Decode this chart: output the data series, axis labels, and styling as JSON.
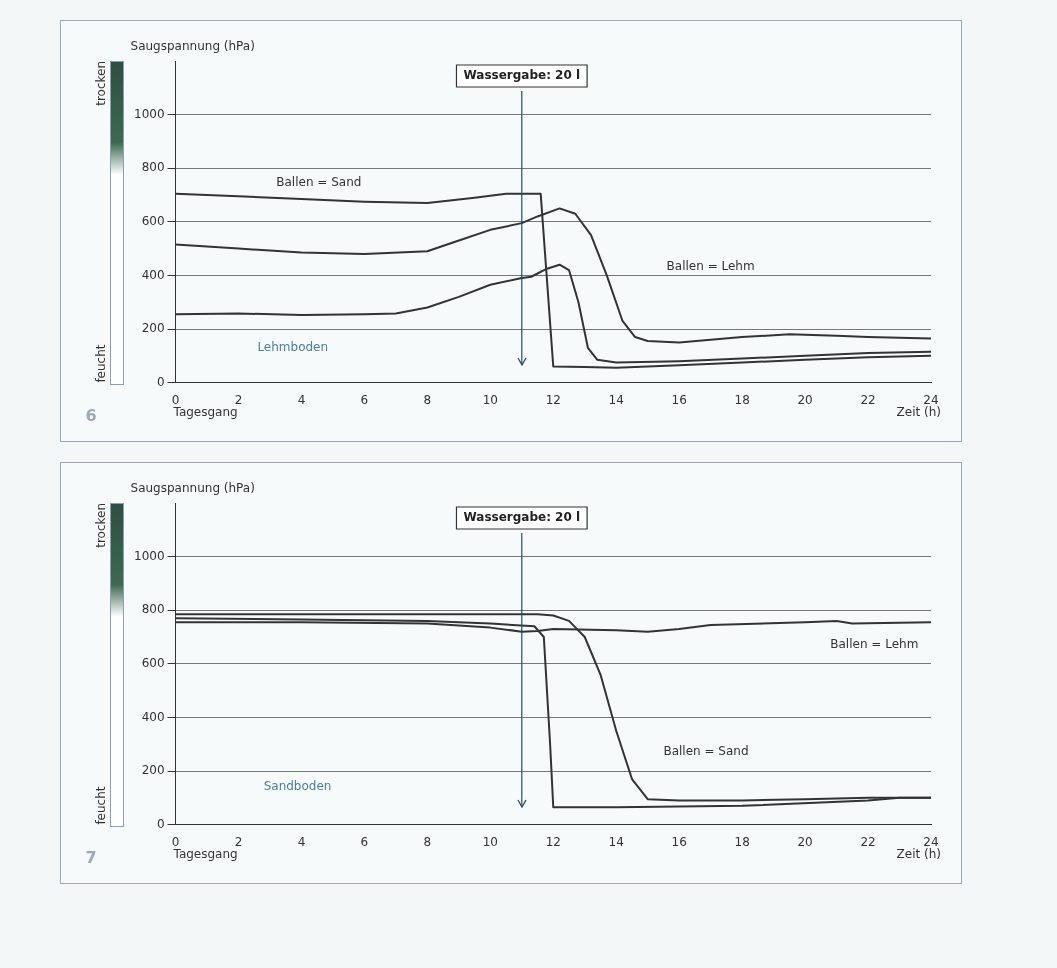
{
  "chart_data": [
    {
      "type": "line",
      "ylabel": "Saugspannung (hPa)",
      "xlabel": "Zeit (h)",
      "xlim": [
        0,
        24
      ],
      "xticks": [
        0,
        2,
        4,
        6,
        8,
        10,
        12,
        14,
        16,
        18,
        20,
        22,
        24
      ],
      "ylim": [
        0,
        1200
      ],
      "yticks": [
        0,
        200,
        400,
        600,
        800,
        1000
      ],
      "grid": "y",
      "legend": false,
      "marker": "none",
      "line_style": "solid",
      "ref_lines": [
        {
          "axis": "x",
          "value": 11,
          "color": "#2b4a6a"
        }
      ],
      "annotations": [
        "trocken",
        "feucht",
        "Tagesgang",
        "6",
        "Ballen = Sand",
        "Ballen = Lehm",
        "Lehmboden",
        "Wassergabe: 20 l"
      ],
      "series": [
        {
          "color": "#333333",
          "x": [
            0,
            2,
            4,
            6,
            8,
            9.5,
            10.5,
            11.6,
            12,
            13,
            14,
            16,
            18,
            20,
            22,
            24
          ],
          "values": [
            705,
            695,
            685,
            675,
            670,
            690,
            705,
            705,
            60,
            58,
            55,
            65,
            75,
            85,
            95,
            100
          ]
        },
        {
          "color": "#333333",
          "x": [
            0,
            2,
            4,
            6,
            8,
            9,
            10,
            11,
            11.5,
            12.2,
            12.7,
            13.2,
            13.7,
            14.2,
            14.6,
            15,
            16,
            18,
            19.5,
            21,
            22,
            24
          ],
          "values": [
            515,
            500,
            485,
            480,
            490,
            530,
            570,
            595,
            620,
            650,
            630,
            550,
            400,
            230,
            170,
            155,
            150,
            170,
            180,
            175,
            170,
            165
          ]
        },
        {
          "color": "#333333",
          "x": [
            0,
            2,
            4,
            6,
            7,
            8,
            9,
            10,
            11,
            11.3,
            11.8,
            12.2,
            12.5,
            12.8,
            13.1,
            13.4,
            14,
            16,
            18,
            20,
            22,
            24
          ],
          "values": [
            255,
            258,
            252,
            255,
            258,
            280,
            320,
            365,
            390,
            395,
            425,
            440,
            420,
            300,
            130,
            85,
            75,
            80,
            90,
            100,
            110,
            115
          ]
        }
      ]
    },
    {
      "type": "line",
      "ylabel": "Saugspannung (hPa)",
      "xlabel": "Zeit (h)",
      "xlim": [
        0,
        24
      ],
      "xticks": [
        0,
        2,
        4,
        6,
        8,
        10,
        12,
        14,
        16,
        18,
        20,
        22,
        24
      ],
      "ylim": [
        0,
        1200
      ],
      "yticks": [
        0,
        200,
        400,
        600,
        800,
        1000
      ],
      "grid": "y",
      "legend": false,
      "marker": "none",
      "line_style": "solid",
      "ref_lines": [
        {
          "axis": "x",
          "value": 11,
          "color": "#2b4a6a"
        }
      ],
      "annotations": [
        "trocken",
        "feucht",
        "Tagesgang",
        "7",
        "Ballen = Lehm",
        "Ballen = Sand",
        "Sandboden",
        "Wassergabe: 20 l"
      ],
      "series": [
        {
          "color": "#333333",
          "x": [
            0,
            4,
            8,
            11.5,
            12,
            12.5,
            13,
            13.5,
            14,
            14.5,
            15,
            16,
            18,
            20,
            22,
            24
          ],
          "values": [
            785,
            785,
            785,
            785,
            780,
            760,
            700,
            560,
            350,
            170,
            95,
            90,
            90,
            95,
            100,
            100
          ]
        },
        {
          "color": "#333333",
          "x": [
            0,
            4,
            8,
            10,
            11,
            11.5,
            12,
            14,
            15,
            16,
            17,
            20,
            21,
            21.5,
            24
          ],
          "values": [
            755,
            755,
            750,
            735,
            720,
            722,
            730,
            725,
            720,
            730,
            745,
            755,
            760,
            750,
            755
          ]
        },
        {
          "color": "#333333",
          "x": [
            0,
            4,
            8,
            10,
            11.4,
            11.7,
            11.9,
            12,
            14,
            18,
            22,
            23,
            24
          ],
          "values": [
            770,
            765,
            760,
            750,
            740,
            700,
            300,
            65,
            65,
            70,
            90,
            100,
            100
          ]
        }
      ]
    }
  ]
}
